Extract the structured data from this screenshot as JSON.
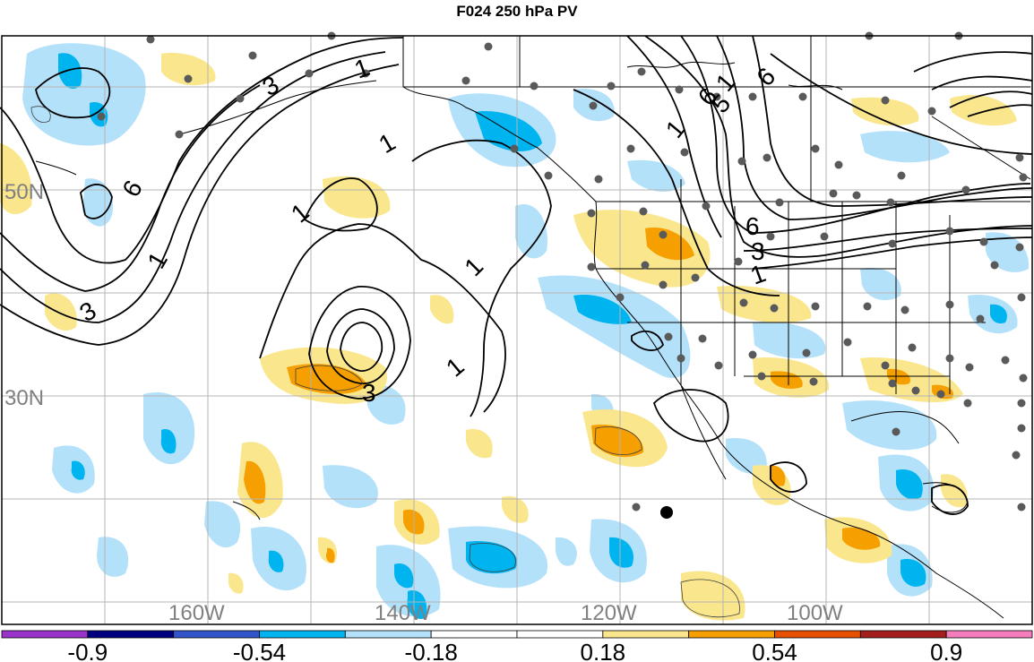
{
  "title": "F024 250 hPa PV",
  "lat_labels": [
    "50N",
    "30N"
  ],
  "lon_labels": [
    "160W",
    "140W",
    "120W",
    "100W"
  ],
  "contour_labels": [
    "3",
    "6",
    "1",
    "3",
    "1",
    "1",
    "1",
    "3",
    "1",
    "1",
    "6",
    "1",
    "1",
    "5",
    "6",
    "6",
    "3",
    "1"
  ],
  "colorbar": {
    "ticks": [
      "-0.9",
      "-0.54",
      "-0.18",
      "0.18",
      "0.54",
      "0.9"
    ],
    "colors": [
      "#9933cc",
      "#000080",
      "#3355cc",
      "#00b4f0",
      "#b4e1fa",
      "#ffffff",
      "#ffffff",
      "#fae68c",
      "#f5a000",
      "#e65000",
      "#a51e1e",
      "#f57dbe"
    ]
  },
  "shading": {
    "light_blue": "#b4e1fa",
    "blue": "#00b4f0",
    "yellow": "#fae68c",
    "orange": "#f5a000",
    "station": "#5a5a5a"
  }
}
